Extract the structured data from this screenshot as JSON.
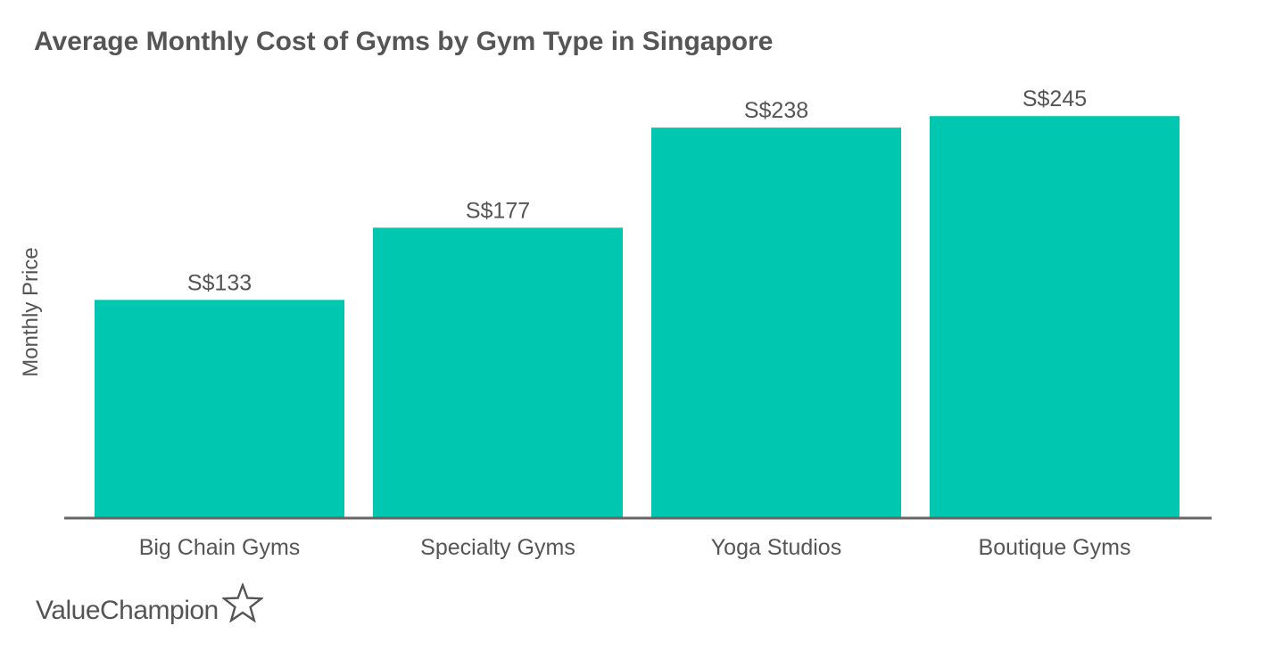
{
  "colors": {
    "bar": "#00c8b0",
    "text": "#555555",
    "axis": "#666666",
    "background": "#ffffff"
  },
  "brand": {
    "name": "ValueChampion",
    "icon": "star-outline-icon"
  },
  "chart_data": {
    "type": "bar",
    "title": "Average Monthly Cost of Gyms by Gym Type in Singapore",
    "ylabel": "Monthly Price",
    "xlabel": "",
    "categories": [
      "Big Chain Gyms",
      "Specialty Gyms",
      "Yoga Studios",
      "Boutique Gyms"
    ],
    "values": [
      133,
      177,
      238,
      245
    ],
    "data_labels": [
      "S$133",
      "S$177",
      "S$238",
      "S$245"
    ],
    "ylim": [
      0,
      250
    ],
    "grid": false,
    "legend": "none"
  }
}
